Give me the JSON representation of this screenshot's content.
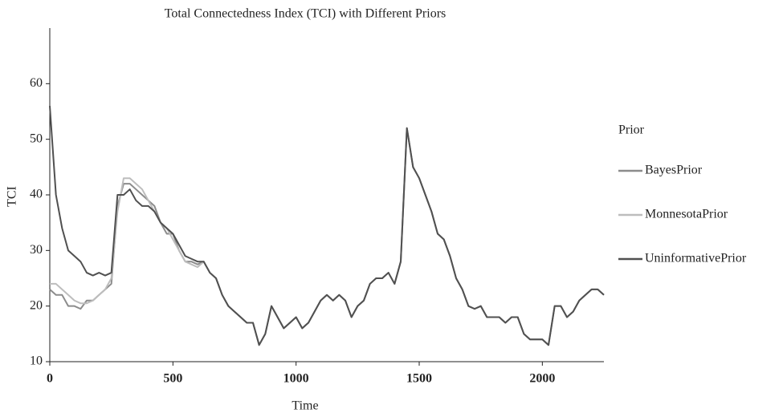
{
  "chart_data": {
    "type": "line",
    "title": "Total Connectedness Index (TCI) with Different Priors",
    "xlabel": "Time",
    "ylabel": "TCI",
    "legend_title": "Prior",
    "x": [
      0,
      25,
      50,
      75,
      100,
      125,
      150,
      175,
      200,
      225,
      250,
      275,
      300,
      325,
      350,
      375,
      400,
      425,
      450,
      475,
      500,
      525,
      550,
      575,
      600,
      625,
      650,
      675,
      700,
      725,
      750,
      775,
      800,
      825,
      850,
      875,
      900,
      925,
      950,
      975,
      1000,
      1025,
      1050,
      1075,
      1100,
      1125,
      1150,
      1175,
      1200,
      1225,
      1250,
      1275,
      1300,
      1325,
      1350,
      1375,
      1400,
      1425,
      1450,
      1475,
      1500,
      1525,
      1550,
      1575,
      1600,
      1625,
      1650,
      1675,
      1700,
      1725,
      1750,
      1775,
      1800,
      1825,
      1850,
      1875,
      1900,
      1925,
      1950,
      1975,
      2000,
      2025,
      2050,
      2075,
      2100,
      2125,
      2150,
      2175,
      2200,
      2225,
      2250
    ],
    "series": [
      {
        "name": "BayesPrior",
        "color": "#8c8c8c",
        "values": [
          23,
          22,
          22,
          20,
          20,
          19.5,
          21,
          21,
          22,
          23,
          24,
          38,
          42,
          42,
          41,
          40,
          39,
          38,
          35,
          33,
          33,
          30,
          28,
          28,
          27.5,
          28,
          26,
          25,
          22,
          20,
          19,
          18,
          17,
          17,
          13,
          15,
          20,
          18,
          16,
          17,
          18,
          16,
          17,
          19,
          21,
          22,
          21,
          22,
          21,
          18,
          20,
          21,
          24,
          25,
          25,
          26,
          24,
          28,
          52,
          45,
          43,
          40,
          37,
          33,
          32,
          29,
          25,
          23,
          20,
          19.5,
          20,
          18,
          18,
          18,
          17,
          18,
          18,
          15,
          14,
          14,
          14,
          13,
          20,
          20,
          18,
          19,
          21,
          22,
          23,
          23,
          22
        ]
      },
      {
        "name": "MonnesotaPrior",
        "color": "#bdbdbd",
        "values": [
          24,
          24,
          23,
          22,
          21,
          20.5,
          20.5,
          21,
          22,
          23,
          25,
          37,
          43,
          43,
          42,
          41,
          39,
          37,
          35,
          34,
          32,
          30,
          28,
          27.5,
          27,
          28,
          26,
          25,
          22,
          20,
          19,
          18,
          17,
          17,
          13,
          15,
          20,
          18,
          16,
          17,
          18,
          16,
          17,
          19,
          21,
          22,
          21,
          22,
          21,
          18,
          20,
          21,
          24,
          25,
          25,
          26,
          24,
          28,
          52,
          45,
          43,
          40,
          37,
          33,
          32,
          29,
          25,
          23,
          20,
          19.5,
          20,
          18,
          18,
          18,
          17,
          18,
          18,
          15,
          14,
          14,
          14,
          13,
          20,
          20,
          18,
          19,
          21,
          22,
          23,
          23,
          22
        ]
      },
      {
        "name": "UninformativePrior",
        "color": "#505050",
        "values": [
          56,
          40,
          34,
          30,
          29,
          28,
          26,
          25.5,
          26,
          25.5,
          26,
          40,
          40,
          41,
          39,
          38,
          38,
          37,
          35,
          34,
          33,
          31,
          29,
          28.5,
          28,
          28,
          26,
          25,
          22,
          20,
          19,
          18,
          17,
          17,
          13,
          15,
          20,
          18,
          16,
          17,
          18,
          16,
          17,
          19,
          21,
          22,
          21,
          22,
          21,
          18,
          20,
          21,
          24,
          25,
          25,
          26,
          24,
          28,
          52,
          45,
          43,
          40,
          37,
          33,
          32,
          29,
          25,
          23,
          20,
          19.5,
          20,
          18,
          18,
          18,
          17,
          18,
          18,
          15,
          14,
          14,
          14,
          13,
          20,
          20,
          18,
          19,
          21,
          22,
          23,
          23,
          22
        ]
      }
    ],
    "xlim": [
      0,
      2250
    ],
    "xticks": [
      0,
      500,
      1000,
      1500,
      2000
    ],
    "ylim": [
      10,
      70
    ],
    "yticks": [
      10,
      20,
      30,
      40,
      50,
      60
    ],
    "legend": "right"
  }
}
